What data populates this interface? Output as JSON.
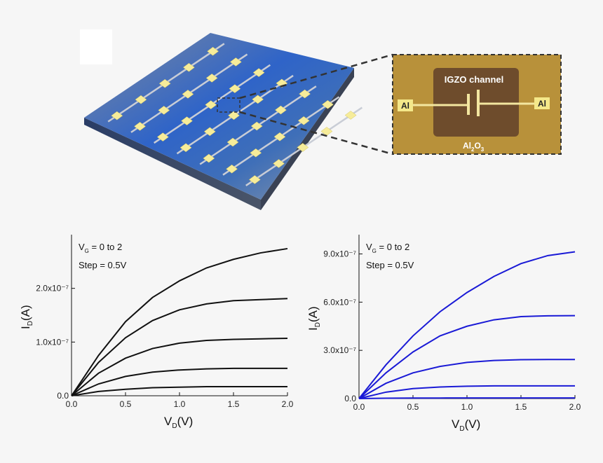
{
  "illustration": {
    "channel_label": "IGZO channel",
    "left_electrode": "Al",
    "right_electrode": "Al",
    "substrate_label": [
      "Al",
      "2",
      "O",
      "3"
    ]
  },
  "chart_data": [
    {
      "type": "line",
      "x": [
        0,
        0.25,
        0.5,
        0.75,
        1.0,
        1.25,
        1.5,
        1.75,
        2.0
      ],
      "xlim": [
        0,
        2
      ],
      "xticks": [
        {
          "value": 0,
          "label": "0.0"
        },
        0.5,
        {
          "value": 1,
          "label": "1.0"
        },
        1.5,
        {
          "value": 2,
          "label": "2.0"
        }
      ],
      "ylim": [
        0,
        3e-07
      ],
      "yticks": [
        {
          "value": 0,
          "label": "0.0"
        },
        {
          "value": 1e-07,
          "label": "1.0x10⁻⁷"
        },
        {
          "value": 2e-07,
          "label": "2.0x10⁻⁷"
        }
      ],
      "xlabel": [
        "V",
        "D",
        "(V)"
      ],
      "ylabel": [
        "I",
        "D",
        "(A)"
      ],
      "annotation_gate": [
        "V",
        "G",
        " = 0 to 2"
      ],
      "annotation_step": "Step = 0.5V",
      "series": [
        {
          "color": "#111111",
          "values": [
            0,
            8e-09,
            1.2e-08,
            1.5e-08,
            1.6e-08,
            1.7e-08,
            1.7e-08,
            1.7e-08,
            1.7e-08
          ]
        },
        {
          "color": "#111111",
          "values": [
            0,
            2.2e-08,
            3.6e-08,
            4.4e-08,
            4.8e-08,
            5e-08,
            5.1e-08,
            5.1e-08,
            5.1e-08
          ]
        },
        {
          "color": "#111111",
          "values": [
            0,
            4.2e-08,
            7e-08,
            8.8e-08,
            9.8e-08,
            1.03e-07,
            1.05e-07,
            1.06e-07,
            1.07e-07
          ]
        },
        {
          "color": "#111111",
          "values": [
            0,
            6.2e-08,
            1.08e-07,
            1.4e-07,
            1.6e-07,
            1.71e-07,
            1.77e-07,
            1.79e-07,
            1.81e-07
          ]
        },
        {
          "color": "#111111",
          "values": [
            0,
            7.5e-08,
            1.38e-07,
            1.83e-07,
            2.14e-07,
            2.38e-07,
            2.54e-07,
            2.66e-07,
            2.74e-07
          ]
        }
      ]
    },
    {
      "type": "line",
      "x": [
        0,
        0.25,
        0.5,
        0.75,
        1.0,
        1.25,
        1.5,
        1.75,
        2.0
      ],
      "xlim": [
        0,
        2
      ],
      "xticks": [
        {
          "value": 0,
          "label": "0.0"
        },
        0.5,
        {
          "value": 1,
          "label": "1.0"
        },
        1.5,
        {
          "value": 2,
          "label": "2.0"
        }
      ],
      "ylim": [
        0,
        1.02e-06
      ],
      "yticks": [
        {
          "value": 0,
          "label": "0.0"
        },
        {
          "value": 3e-07,
          "label": "3.0x10⁻⁷"
        },
        {
          "value": 6e-07,
          "label": "6.0x10⁻⁷"
        },
        {
          "value": 9e-07,
          "label": "9.0x10⁻⁷"
        }
      ],
      "xlabel": [
        "V",
        "D",
        "(V)"
      ],
      "ylabel": [
        "I",
        "D",
        "(A)"
      ],
      "annotation_gate": [
        "V",
        "G",
        " = 0 to 2"
      ],
      "annotation_step": "Step = 0.5V",
      "series": [
        {
          "color": "#1a1ad6",
          "values": [
            0,
            2e-09,
            3e-09,
            3.5e-09,
            4e-09,
            4e-09,
            4e-09,
            4e-09,
            4e-09
          ]
        },
        {
          "color": "#1a1ad6",
          "values": [
            0,
            4e-08,
            6.2e-08,
            7.2e-08,
            7.7e-08,
            7.9e-08,
            7.9e-08,
            7.9e-08,
            7.9e-08
          ]
        },
        {
          "color": "#1a1ad6",
          "values": [
            0,
            9.5e-08,
            1.6e-07,
            2e-07,
            2.25e-07,
            2.37e-07,
            2.42e-07,
            2.43e-07,
            2.43e-07
          ]
        },
        {
          "color": "#1a1ad6",
          "values": [
            0,
            1.6e-07,
            2.9e-07,
            3.9e-07,
            4.5e-07,
            4.9e-07,
            5.1e-07,
            5.15e-07,
            5.16e-07
          ]
        },
        {
          "color": "#1a1ad6",
          "values": [
            0,
            2.1e-07,
            3.9e-07,
            5.4e-07,
            6.6e-07,
            7.6e-07,
            8.4e-07,
            8.9e-07,
            9.13e-07
          ]
        }
      ]
    }
  ]
}
